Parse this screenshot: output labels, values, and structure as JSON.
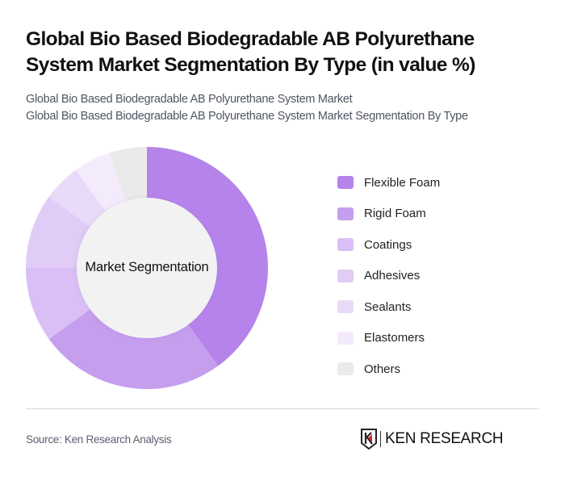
{
  "header": {
    "title": "Global Bio Based Biodegradable AB Polyurethane System Market Segmentation By Type (in value %)",
    "subtitle_line1": "Global Bio Based Biodegradable AB Polyurethane System Market",
    "subtitle_line2": "Global Bio Based Biodegradable AB Polyurethane System Market Segmentation By Type"
  },
  "chart": {
    "center_label": "Market Segmentation"
  },
  "legend": {
    "items": [
      {
        "label": "Flexible Foam",
        "color": "#B583EA"
      },
      {
        "label": "Rigid Foam",
        "color": "#C69EEE"
      },
      {
        "label": "Coatings",
        "color": "#D9BFF5"
      },
      {
        "label": "Adhesives",
        "color": "#E0CCF6"
      },
      {
        "label": "Sealants",
        "color": "#E9DAF9"
      },
      {
        "label": "Elastomers",
        "color": "#F3EBFC"
      },
      {
        "label": "Others",
        "color": "#EAEAEA"
      }
    ]
  },
  "footer": {
    "source": "Source: Ken Research Analysis",
    "logo_text": "KEN RESEARCH"
  },
  "chart_data": {
    "type": "pie",
    "subtype": "donut",
    "title": "Global Bio Based Biodegradable AB Polyurethane System Market Segmentation By Type (in value %)",
    "center_label": "Market Segmentation",
    "categories": [
      "Flexible Foam",
      "Rigid Foam",
      "Coatings",
      "Adhesives",
      "Sealants",
      "Elastomers",
      "Others"
    ],
    "values": [
      40,
      25,
      10,
      10,
      5,
      5,
      5
    ],
    "colors": [
      "#B583EA",
      "#C69EEE",
      "#D9BFF5",
      "#E0CCF6",
      "#E9DAF9",
      "#F3EBFC",
      "#EAEAEA"
    ],
    "unit": "%",
    "legend_position": "right",
    "start_angle": "12 o'clock, clockwise"
  }
}
